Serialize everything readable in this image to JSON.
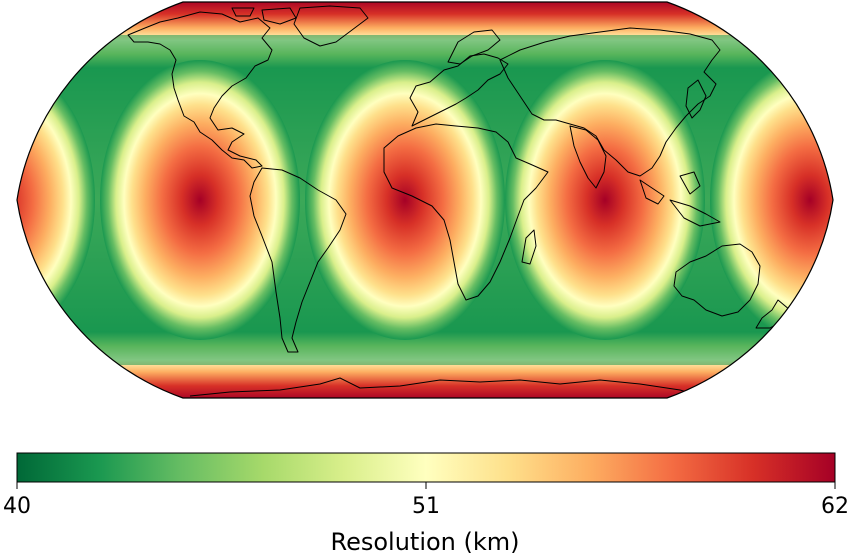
{
  "map": {
    "projection": "Robinson",
    "variable": "resolution",
    "pattern": "tiled cells: red (coarse) at cell centres, green (fine) along cell boundaries",
    "coastline_color": "#000000"
  },
  "colorbar": {
    "label": "Resolution (km)",
    "min": 40,
    "max": 62,
    "colormap": "RdYlGn_r",
    "ticks": [
      {
        "value": 40,
        "label": "40"
      },
      {
        "value": 51,
        "label": "51"
      },
      {
        "value": 62,
        "label": "62"
      }
    ],
    "colors": [
      "#006837",
      "#1a9850",
      "#66bd63",
      "#a6d96a",
      "#d9ef8b",
      "#ffffbf",
      "#fee08b",
      "#fdae61",
      "#f46d43",
      "#d73027",
      "#a50026"
    ]
  }
}
